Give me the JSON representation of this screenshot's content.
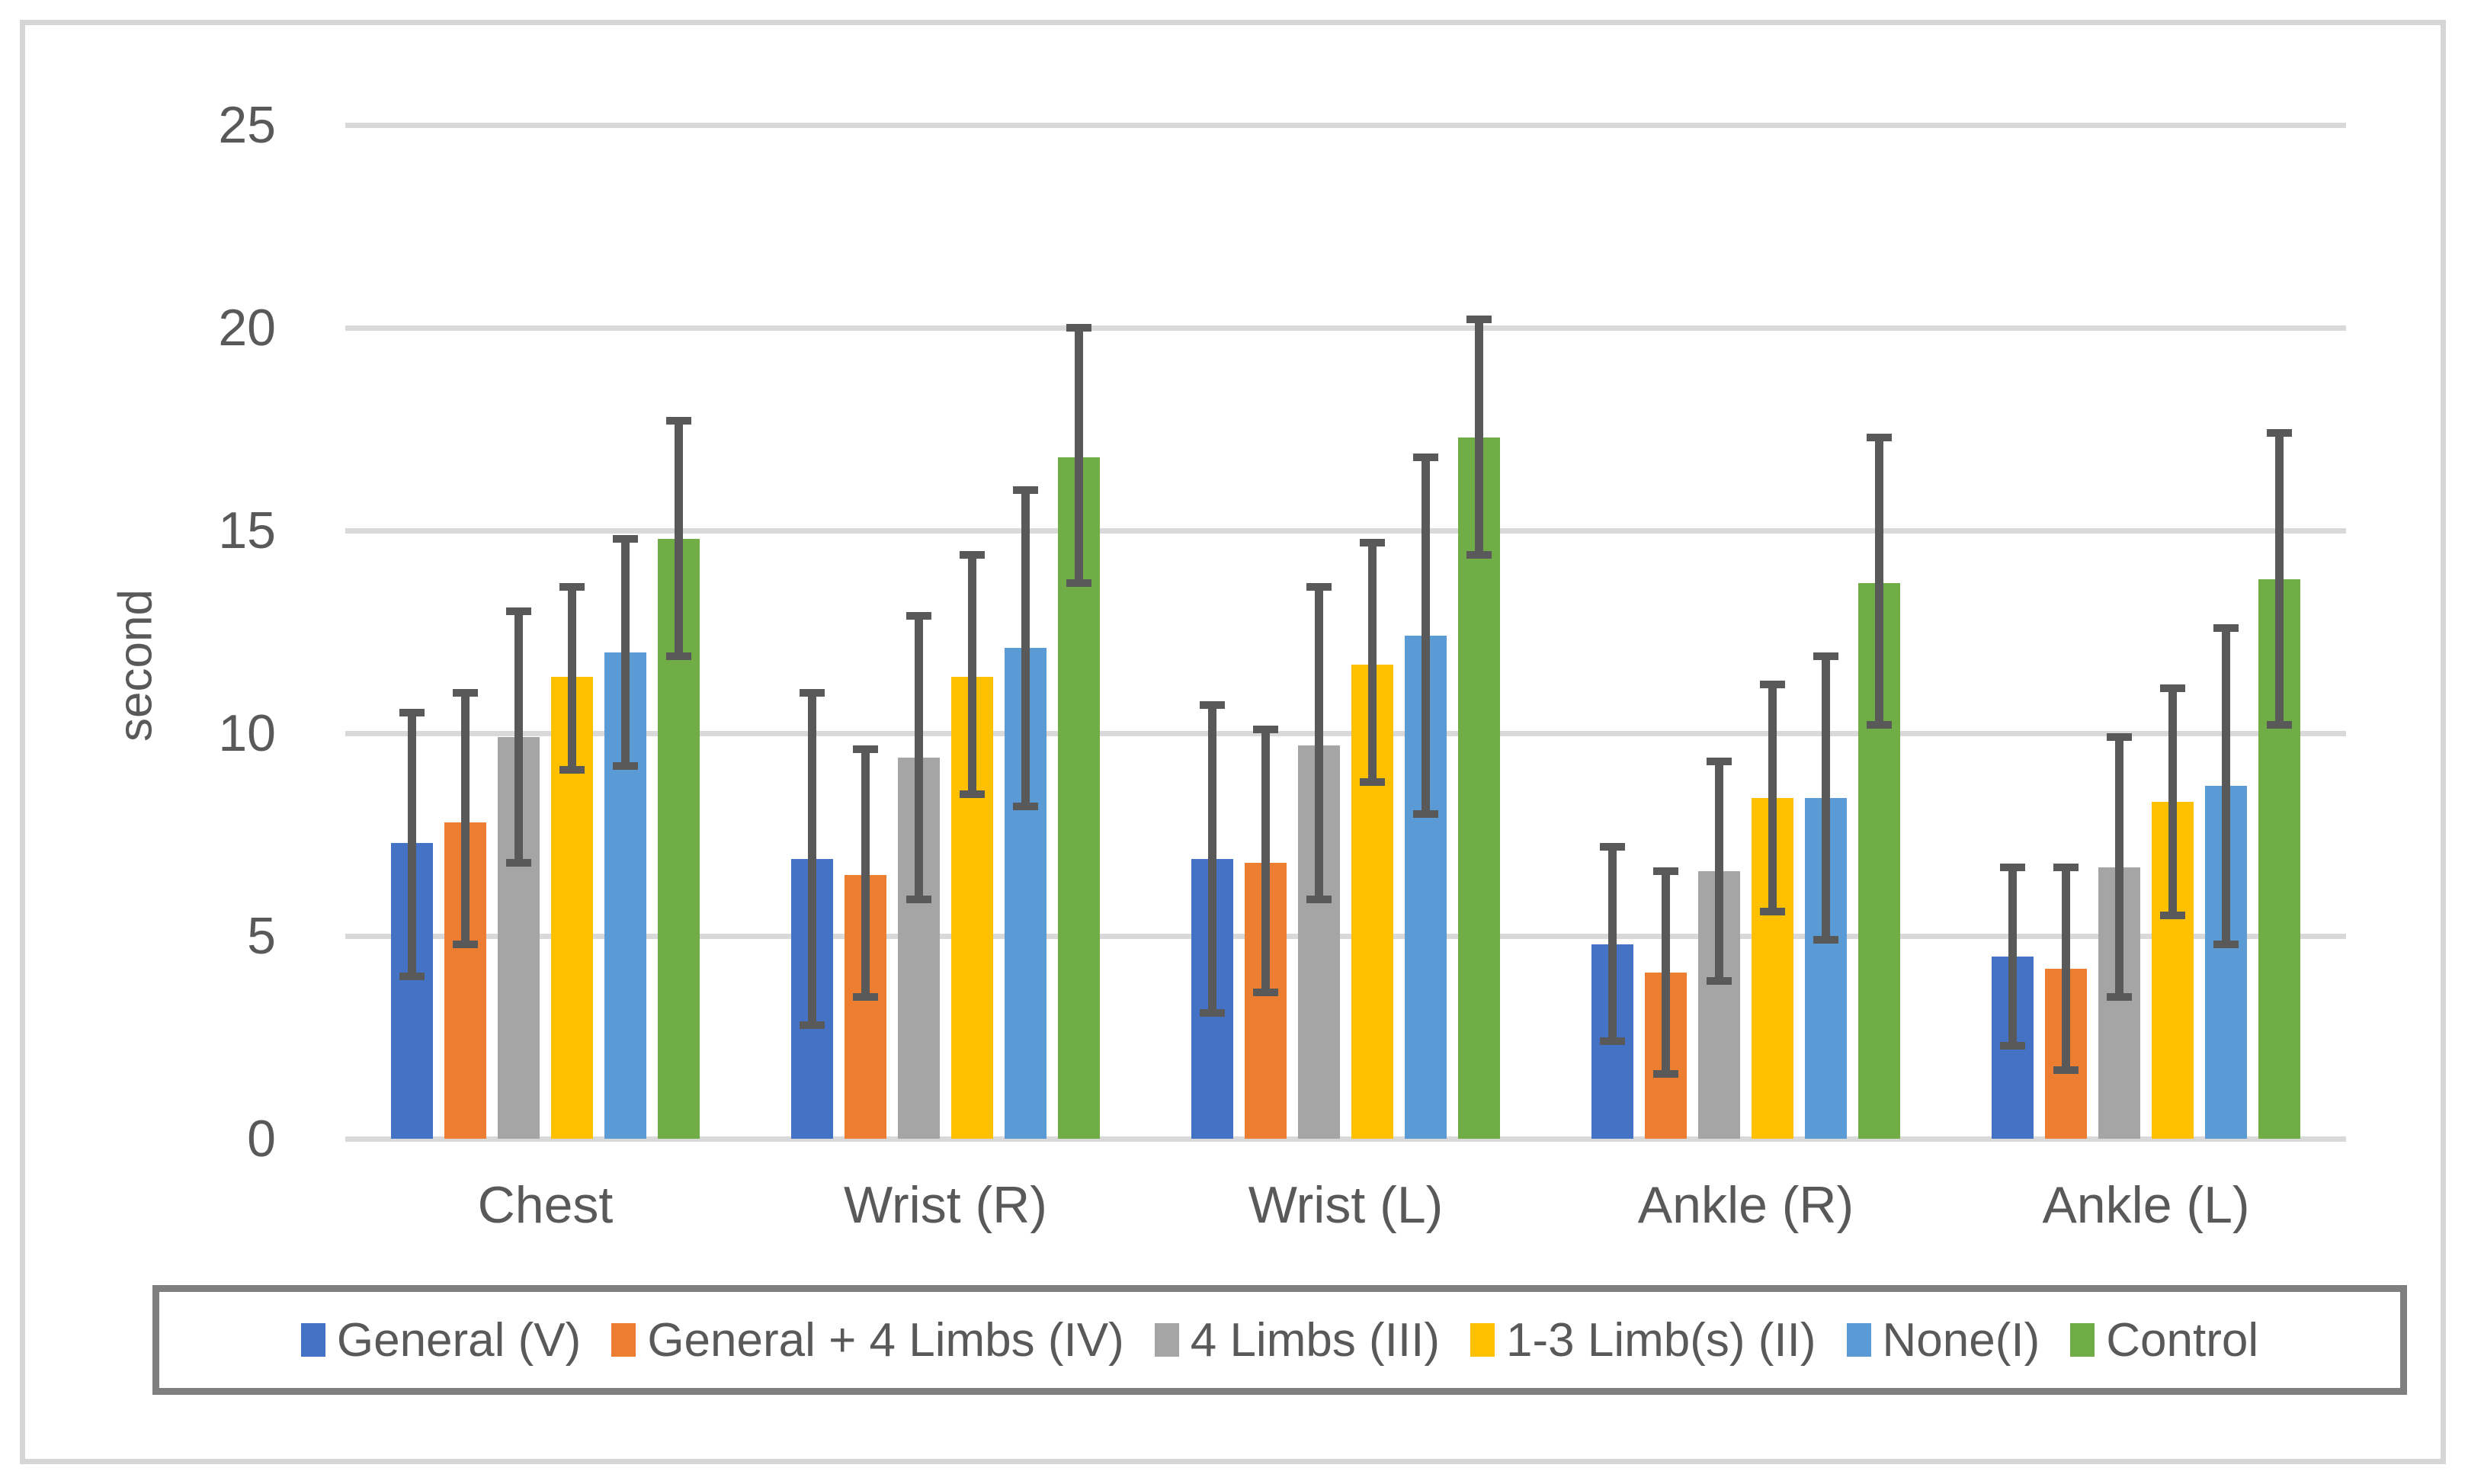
{
  "chart_data": {
    "type": "bar",
    "title": "",
    "xlabel": "",
    "ylabel": "second",
    "ylim": [
      0,
      25
    ],
    "y_ticks": [
      0,
      5,
      10,
      15,
      20,
      25
    ],
    "grid": true,
    "legend_position": "bottom",
    "error_bars": true,
    "categories": [
      "Chest",
      "Wrist (R)",
      "Wrist (L)",
      "Ankle (R)",
      "Ankle (L)"
    ],
    "series": [
      {
        "name": "General (V)",
        "color": "#4472C4",
        "values": [
          7.3,
          6.9,
          6.9,
          4.8,
          4.5
        ],
        "error_low": [
          4.0,
          2.8,
          3.1,
          2.4,
          2.3
        ],
        "error_high": [
          10.5,
          11.0,
          10.7,
          7.2,
          6.7
        ]
      },
      {
        "name": "General + 4 Limbs (IV)",
        "color": "#ED7D31",
        "values": [
          7.8,
          6.5,
          6.8,
          4.1,
          4.2
        ],
        "error_low": [
          4.8,
          3.5,
          3.6,
          1.6,
          1.7
        ],
        "error_high": [
          11.0,
          9.6,
          10.1,
          6.6,
          6.7
        ]
      },
      {
        "name": "4 Limbs (III)",
        "color": "#A5A5A5",
        "values": [
          9.9,
          9.4,
          9.7,
          6.6,
          6.7
        ],
        "error_low": [
          6.8,
          5.9,
          5.9,
          3.9,
          3.5
        ],
        "error_high": [
          13.0,
          12.9,
          13.6,
          9.3,
          9.9
        ]
      },
      {
        "name": "1-3 Limb(s) (II)",
        "color": "#FFC000",
        "values": [
          11.4,
          11.4,
          11.7,
          8.4,
          8.3
        ],
        "error_low": [
          9.1,
          8.5,
          8.8,
          5.6,
          5.5
        ],
        "error_high": [
          13.6,
          14.4,
          14.7,
          11.2,
          11.1
        ]
      },
      {
        "name": "None(I)",
        "color": "#5B9BD5",
        "values": [
          12.0,
          12.1,
          12.4,
          8.4,
          8.7
        ],
        "error_low": [
          9.2,
          8.2,
          8.0,
          4.9,
          4.8
        ],
        "error_high": [
          14.8,
          16.0,
          16.8,
          11.9,
          12.6
        ]
      },
      {
        "name": "Control",
        "color": "#70AD47",
        "values": [
          14.8,
          16.8,
          17.3,
          13.7,
          13.8
        ],
        "error_low": [
          11.9,
          13.7,
          14.4,
          10.2,
          10.2
        ],
        "error_high": [
          17.7,
          20.0,
          20.2,
          17.3,
          17.4
        ]
      }
    ],
    "colors": {
      "gridline": "#D9D9D9",
      "axis_text": "#595959",
      "error_bar": "#595959",
      "legend_border": "#7F7F7F",
      "chart_border": "#D6D6D6",
      "background": "#FFFFFF"
    }
  }
}
